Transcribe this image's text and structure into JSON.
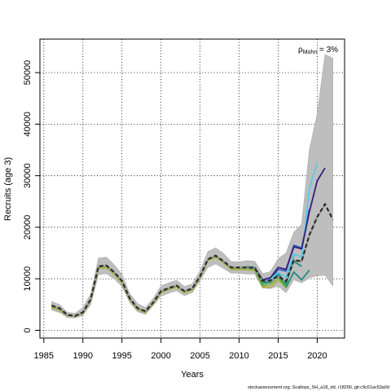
{
  "chart_data": {
    "type": "line",
    "xlabel": "Years",
    "ylabel": "Recruits (age 3)",
    "xlim": [
      1984.5,
      2023.5
    ],
    "ylim": [
      -1500,
      56500
    ],
    "xticks": [
      1985,
      1990,
      1995,
      2000,
      2005,
      2010,
      2015,
      2020
    ],
    "yticks": [
      0,
      10000,
      20000,
      30000,
      40000,
      50000
    ],
    "grid": true,
    "annotation": {
      "rho_symbol": "ρ",
      "rho_subscript": "Mohn",
      "rho_value": " = 3%",
      "placement": "top-right"
    },
    "confidence_band": {
      "name": "",
      "color": "#bebebe",
      "x": [
        1986,
        1987,
        1988,
        1989,
        1990,
        1991,
        1992,
        1993,
        1994,
        1995,
        1996,
        1997,
        1998,
        1999,
        2000,
        2001,
        2002,
        2003,
        2004,
        2005,
        2006,
        2007,
        2008,
        2009,
        2010,
        2011,
        2012,
        2013,
        2014,
        2015,
        2016,
        2017,
        2018,
        2019,
        2020,
        2021,
        2022
      ],
      "lower": [
        3900,
        3500,
        2500,
        2400,
        2900,
        5000,
        10800,
        11000,
        10000,
        8500,
        5400,
        3600,
        3100,
        4800,
        6600,
        7200,
        7700,
        6700,
        7300,
        9600,
        12200,
        12900,
        12000,
        11100,
        11100,
        10900,
        10900,
        8200,
        8100,
        8600,
        7300,
        9800,
        9200,
        10200,
        10600,
        10700,
        8600
      ],
      "upper": [
        5600,
        5000,
        3500,
        3300,
        4400,
        7000,
        14000,
        14200,
        12700,
        10900,
        7100,
        5200,
        4400,
        6200,
        8600,
        9200,
        9700,
        8500,
        9000,
        11500,
        15300,
        16000,
        14900,
        13300,
        13300,
        13500,
        13400,
        11000,
        11400,
        13900,
        15000,
        19000,
        20600,
        35000,
        42000,
        53500,
        52800
      ]
    },
    "series": [
      {
        "name": "",
        "color": "#2b2b2b",
        "dashed": true,
        "x": [
          1986,
          1987,
          1988,
          1989,
          1990,
          1991,
          1992,
          1993,
          1994,
          1995,
          1996,
          1997,
          1998,
          1999,
          2000,
          2001,
          2002,
          2003,
          2004,
          2005,
          2006,
          2007,
          2008,
          2009,
          2010,
          2011,
          2012,
          2013,
          2014,
          2015,
          2016,
          2017,
          2018,
          2019,
          2020,
          2021,
          2022
        ],
        "values": [
          4800,
          4300,
          3000,
          2800,
          3500,
          6000,
          12400,
          12600,
          11300,
          9600,
          6200,
          4300,
          3700,
          5400,
          7600,
          8200,
          8700,
          7600,
          8100,
          10500,
          13800,
          14500,
          13400,
          12200,
          12200,
          12200,
          12100,
          9600,
          9700,
          10500,
          9500,
          13600,
          13400,
          18500,
          22000,
          24500,
          21500
        ]
      },
      {
        "name": "",
        "color": "#999999",
        "dashed": false,
        "x": [
          1986,
          1987,
          1988,
          1989,
          1990,
          1991,
          1992,
          1993,
          1994,
          1995,
          1996,
          1997,
          1998,
          1999,
          2000,
          2001,
          2002,
          2003,
          2004,
          2005,
          2006,
          2007,
          2008,
          2009,
          2010,
          2011,
          2012,
          2013,
          2014,
          2015,
          2016,
          2017,
          2018,
          2019,
          2020,
          2021
        ],
        "values": [
          4700,
          4250,
          2950,
          2750,
          3450,
          5950,
          12350,
          12550,
          11250,
          9550,
          6150,
          4250,
          3650,
          5350,
          7550,
          8150,
          8650,
          7550,
          8050,
          10450,
          13750,
          14450,
          13350,
          12150,
          12150,
          12150,
          12050,
          9550,
          9650,
          10450,
          9450,
          13550,
          13350,
          18400,
          21900,
          24400
        ]
      },
      {
        "name": "",
        "color": "#3a1c7a",
        "dashed": false,
        "x": [
          2012,
          2013,
          2014,
          2015,
          2016,
          2017,
          2018,
          2019,
          2020,
          2021
        ],
        "values": [
          12200,
          9800,
          10200,
          12200,
          11800,
          16200,
          15800,
          23000,
          29000,
          31500
        ]
      },
      {
        "name": "",
        "color": "#5bc8e6",
        "dashed": false,
        "x": [
          2012,
          2013,
          2014,
          2015,
          2016,
          2017,
          2018,
          2019,
          2020
        ],
        "values": [
          12200,
          9700,
          9900,
          11200,
          10300,
          14800,
          14200,
          27500,
          32500
        ]
      },
      {
        "name": "",
        "color": "#2b65c6",
        "dashed": false,
        "x": [
          2012,
          2013,
          2014,
          2015,
          2016,
          2017,
          2018,
          2019
        ],
        "values": [
          12200,
          9600,
          9700,
          11800,
          11500,
          16500,
          16000,
          23500
        ]
      },
      {
        "name": "",
        "color": "#1f8a7a",
        "dashed": false,
        "x": [
          2011,
          2012,
          2013,
          2014,
          2015,
          2016,
          2017,
          2018
        ],
        "values": [
          12300,
          12200,
          9400,
          9300,
          11000,
          9200,
          13400,
          12400
        ]
      },
      {
        "name": "",
        "color": "#2ea85e",
        "dashed": false,
        "x": [
          2010,
          2011,
          2012,
          2013,
          2014,
          2015,
          2016,
          2017
        ],
        "values": [
          12150,
          12250,
          12000,
          8900,
          9400,
          10600,
          8700,
          14600
        ]
      },
      {
        "name": "",
        "color": "#8db13b",
        "dashed": false,
        "x": [
          1986,
          1987,
          1988,
          1989,
          1990,
          1991,
          1992,
          1993,
          1994,
          1995,
          1996,
          1997,
          1998,
          1999,
          2000,
          2001,
          2002,
          2003,
          2004,
          2005,
          2006,
          2007,
          2008,
          2009,
          2010,
          2011,
          2012,
          2013,
          2014,
          2015,
          2016
        ],
        "values": [
          4500,
          4000,
          2900,
          2700,
          3300,
          5800,
          12100,
          12300,
          11000,
          9300,
          6000,
          4100,
          3500,
          5200,
          7400,
          8000,
          8500,
          7400,
          7900,
          10300,
          13600,
          14300,
          13200,
          11900,
          11900,
          11900,
          11700,
          8600,
          8900,
          10000,
          8200
        ]
      },
      {
        "name": "",
        "color": "#b8b044",
        "dashed": false,
        "x": [
          1986,
          1987,
          1988,
          1989,
          1990,
          1991,
          1992,
          1993,
          1994,
          1995,
          1996,
          1997,
          1998,
          1999,
          2000,
          2001,
          2002,
          2003,
          2004,
          2005,
          2006,
          2007,
          2008,
          2009,
          2010,
          2011,
          2012,
          2013,
          2014,
          2015
        ],
        "values": [
          4400,
          3900,
          2850,
          2650,
          3250,
          5700,
          12000,
          12200,
          10900,
          9200,
          5900,
          4050,
          3450,
          5100,
          7300,
          7900,
          8400,
          7300,
          7800,
          10200,
          13500,
          14200,
          13100,
          11800,
          11800,
          11800,
          11600,
          8400,
          8300,
          9600
        ]
      },
      {
        "name": "",
        "color": "#1f8a7a",
        "dashed": false,
        "x": [
          2014,
          2015,
          2016,
          2017,
          2018,
          2019
        ],
        "values": [
          9500,
          10600,
          8300,
          11300,
          9800,
          11700
        ]
      }
    ]
  },
  "footer": {
    "text": "stockassessment.org, Scallops_SH_a18_dd, r18290, git:c9c61ac53a0d"
  }
}
